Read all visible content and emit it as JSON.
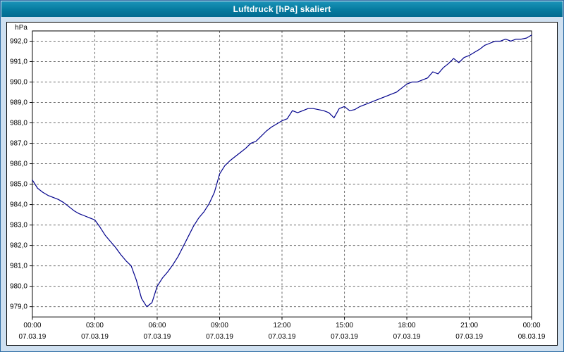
{
  "window": {
    "title": "Luftdruck [hPa] skaliert"
  },
  "colors": {
    "titlebar_bg": "#057a9f",
    "titlebar_text": "#ffffff",
    "window_bg": "#cfe0f0",
    "plot_bg": "#ffffff",
    "grid": "#6a6a6a",
    "line": "#00008b"
  },
  "chart_data": {
    "type": "line",
    "title": "Luftdruck [hPa] skaliert",
    "ylabel": "hPa",
    "xlabel": "",
    "grid": "dashed",
    "legend": "none",
    "ylim": [
      978.5,
      992.5
    ],
    "xlim": [
      0,
      24
    ],
    "yticks": [
      {
        "value": 979,
        "label": "979,0"
      },
      {
        "value": 980,
        "label": "980,0"
      },
      {
        "value": 981,
        "label": "981,0"
      },
      {
        "value": 982,
        "label": "982,0"
      },
      {
        "value": 983,
        "label": "983,0"
      },
      {
        "value": 984,
        "label": "984,0"
      },
      {
        "value": 985,
        "label": "985,0"
      },
      {
        "value": 986,
        "label": "986,0"
      },
      {
        "value": 987,
        "label": "987,0"
      },
      {
        "value": 988,
        "label": "988,0"
      },
      {
        "value": 989,
        "label": "989,0"
      },
      {
        "value": 990,
        "label": "990,0"
      },
      {
        "value": 991,
        "label": "991,0"
      },
      {
        "value": 992,
        "label": "992,0"
      }
    ],
    "xticks": [
      {
        "hour": 0,
        "time": "00:00",
        "date": "07.03.19"
      },
      {
        "hour": 3,
        "time": "03:00",
        "date": "07.03.19"
      },
      {
        "hour": 6,
        "time": "06:00",
        "date": "07.03.19"
      },
      {
        "hour": 9,
        "time": "09:00",
        "date": "07.03.19"
      },
      {
        "hour": 12,
        "time": "12:00",
        "date": "07.03.19"
      },
      {
        "hour": 15,
        "time": "15:00",
        "date": "07.03.19"
      },
      {
        "hour": 18,
        "time": "18:00",
        "date": "07.03.19"
      },
      {
        "hour": 21,
        "time": "21:00",
        "date": "07.03.19"
      },
      {
        "hour": 24,
        "time": "00:00",
        "date": "08.03.19"
      }
    ],
    "series": [
      {
        "name": "Luftdruck",
        "color": "#00008b",
        "x_start_hour": 0,
        "x_step_hours": 0.25,
        "values": [
          985.2,
          984.8,
          984.6,
          984.45,
          984.35,
          984.25,
          984.1,
          983.9,
          983.7,
          983.55,
          983.45,
          983.35,
          983.25,
          982.9,
          982.5,
          982.2,
          981.9,
          981.55,
          981.25,
          981.0,
          980.3,
          979.4,
          979.0,
          979.2,
          980.0,
          980.4,
          980.7,
          981.05,
          981.45,
          981.95,
          982.45,
          982.95,
          983.35,
          983.65,
          984.05,
          984.6,
          985.5,
          985.9,
          986.15,
          986.35,
          986.55,
          986.75,
          987.0,
          987.1,
          987.35,
          987.6,
          987.8,
          987.95,
          988.1,
          988.2,
          988.6,
          988.5,
          988.6,
          988.7,
          988.7,
          988.65,
          988.6,
          988.5,
          988.25,
          988.7,
          988.8,
          988.6,
          988.65,
          988.8,
          988.9,
          989.0,
          989.1,
          989.2,
          989.3,
          989.4,
          989.5,
          989.7,
          989.9,
          990.0,
          990.0,
          990.1,
          990.2,
          990.5,
          990.4,
          990.7,
          990.9,
          991.15,
          990.95,
          991.2,
          991.3,
          991.45,
          991.6,
          991.8,
          991.9,
          992.0,
          992.0,
          992.1,
          992.0,
          992.1,
          992.1,
          992.15,
          992.3
        ]
      }
    ]
  }
}
